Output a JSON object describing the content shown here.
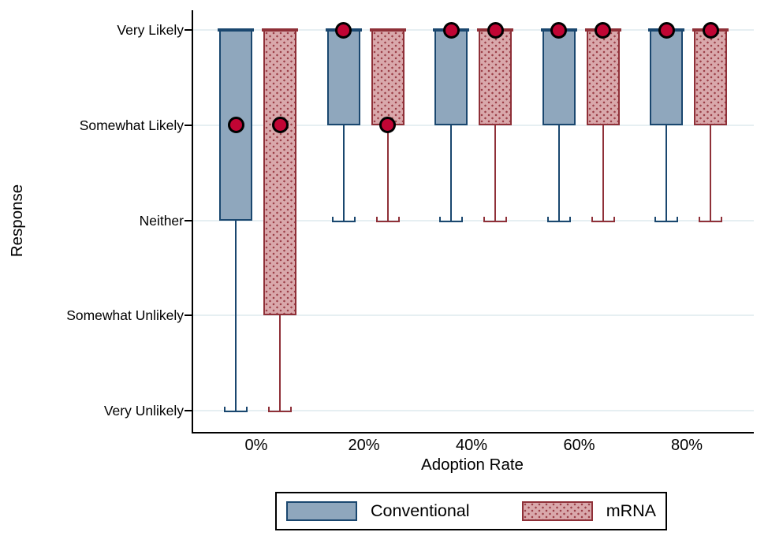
{
  "figure": {
    "y_axis_title": "Response",
    "x_axis_title": "Adoption Rate"
  },
  "chart_data": {
    "type": "box",
    "orientation": "vertical",
    "title": "",
    "xlabel": "Adoption Rate",
    "ylabel": "Response",
    "grid": true,
    "legend_position": "bottom",
    "x_categories": [
      "0%",
      "20%",
      "40%",
      "60%",
      "80%"
    ],
    "y_levels": [
      {
        "value": 1,
        "label": "Very Unlikely"
      },
      {
        "value": 2,
        "label": "Somewhat Unlikely"
      },
      {
        "value": 3,
        "label": "Neither"
      },
      {
        "value": 4,
        "label": "Somewhat Likely"
      },
      {
        "value": 5,
        "label": "Very Likely"
      }
    ],
    "series": [
      {
        "name": "Conventional",
        "pattern": "solid",
        "fill": "#8fa7bd",
        "border": "#1a476f",
        "boxes": [
          {
            "category": "0%",
            "q1": 3,
            "median": 5,
            "q3": 5,
            "mean": 4,
            "whisker_low": 1,
            "whisker_high": 5
          },
          {
            "category": "20%",
            "q1": 4,
            "median": 5,
            "q3": 5,
            "mean": 5,
            "whisker_low": 3,
            "whisker_high": 5
          },
          {
            "category": "40%",
            "q1": 4,
            "median": 5,
            "q3": 5,
            "mean": 5,
            "whisker_low": 3,
            "whisker_high": 5
          },
          {
            "category": "60%",
            "q1": 4,
            "median": 5,
            "q3": 5,
            "mean": 5,
            "whisker_low": 3,
            "whisker_high": 5
          },
          {
            "category": "80%",
            "q1": 4,
            "median": 5,
            "q3": 5,
            "mean": 5,
            "whisker_low": 3,
            "whisker_high": 5
          }
        ]
      },
      {
        "name": "mRNA",
        "pattern": "dotted",
        "fill": "#d9a8ab",
        "border": "#8f3038",
        "pattern_dot": "#9c4049",
        "boxes": [
          {
            "category": "0%",
            "q1": 2,
            "median": 5,
            "q3": 5,
            "mean": 4,
            "whisker_low": 1,
            "whisker_high": 5
          },
          {
            "category": "20%",
            "q1": 4,
            "median": 5,
            "q3": 5,
            "mean": 4,
            "whisker_low": 3,
            "whisker_high": 5
          },
          {
            "category": "40%",
            "q1": 4,
            "median": 5,
            "q3": 5,
            "mean": 5,
            "whisker_low": 3,
            "whisker_high": 5
          },
          {
            "category": "60%",
            "q1": 4,
            "median": 5,
            "q3": 5,
            "mean": 5,
            "whisker_low": 3,
            "whisker_high": 5
          },
          {
            "category": "80%",
            "q1": 4,
            "median": 5,
            "q3": 5,
            "mean": 5,
            "whisker_low": 3,
            "whisker_high": 5
          }
        ]
      }
    ],
    "mean_marker": {
      "shape": "circle",
      "fill": "#c10534",
      "border": "#000000"
    },
    "colors": {
      "gridline": "#e6eff2",
      "axis": "#000000",
      "background": "#ffffff"
    }
  },
  "legend": {
    "entries": [
      {
        "label": "Conventional"
      },
      {
        "label": "mRNA"
      }
    ]
  }
}
